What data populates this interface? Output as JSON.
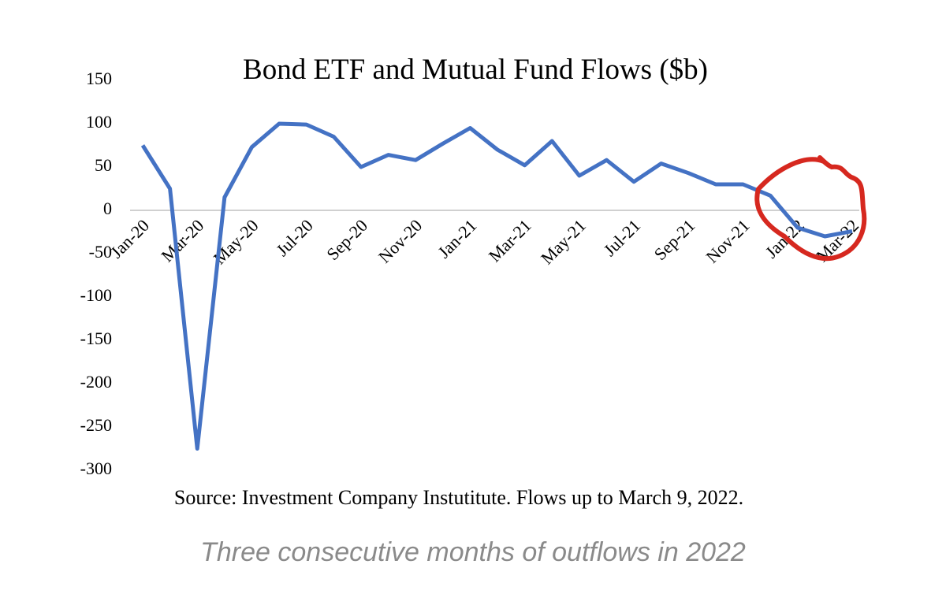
{
  "chart_data": {
    "type": "line",
    "title": "Bond ETF and Mutual Fund Flows ($b)",
    "source": "Source: Investment Company Instutitute. Flows up to March 9, 2022.",
    "caption": "Three consecutive months of outflows in 2022",
    "categories": [
      "Jan-20",
      null,
      "Mar-20",
      null,
      "May-20",
      null,
      "Jul-20",
      null,
      "Sep-20",
      null,
      "Nov-20",
      null,
      "Jan-21",
      null,
      "Mar-21",
      null,
      "May-21",
      null,
      "Jul-21",
      null,
      "Sep-21",
      null,
      "Nov-21",
      null,
      "Jan-22",
      null,
      "Mar-22"
    ],
    "series": [
      {
        "name": "Flows",
        "color": "#4472c4",
        "values": [
          75,
          25,
          -275,
          15,
          73,
          100,
          99,
          85,
          50,
          64,
          58,
          77,
          95,
          70,
          52,
          80,
          40,
          58,
          33,
          54,
          43,
          30,
          30,
          17,
          -20,
          -30,
          -24
        ]
      }
    ],
    "ylim": [
      -300,
      150
    ],
    "yticks": [
      150,
      100,
      50,
      0,
      -50,
      -100,
      -150,
      -200,
      -250,
      -300
    ],
    "zero_line": true
  }
}
